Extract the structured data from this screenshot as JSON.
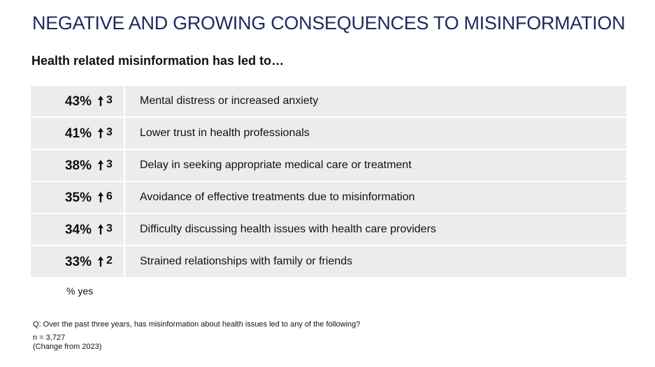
{
  "header": {
    "title": "NEGATIVE AND GROWING CONSEQUENCES TO MISINFORMATION",
    "subtitle": "Health related misinformation has led to…"
  },
  "table": {
    "rows": [
      {
        "percent": "43%",
        "change": 3,
        "label": "Mental distress or increased anxiety"
      },
      {
        "percent": "41%",
        "change": 3,
        "label": "Lower trust in health professionals"
      },
      {
        "percent": "38%",
        "change": 3,
        "label": "Delay in seeking appropriate medical care or treatment"
      },
      {
        "percent": "35%",
        "change": 6,
        "label": "Avoidance of effective treatments due to misinformation"
      },
      {
        "percent": "34%",
        "change": 3,
        "label": "Difficulty discussing health issues with health care providers"
      },
      {
        "percent": "33%",
        "change": 2,
        "label": "Strained relationships with family or friends"
      }
    ],
    "unit_note": "% yes"
  },
  "footnotes": {
    "question": "Q: Over the past three years, has misinformation about health issues led to any of the following?",
    "sample": "n = 3,727",
    "change_note": "(Change from 2023)"
  }
}
